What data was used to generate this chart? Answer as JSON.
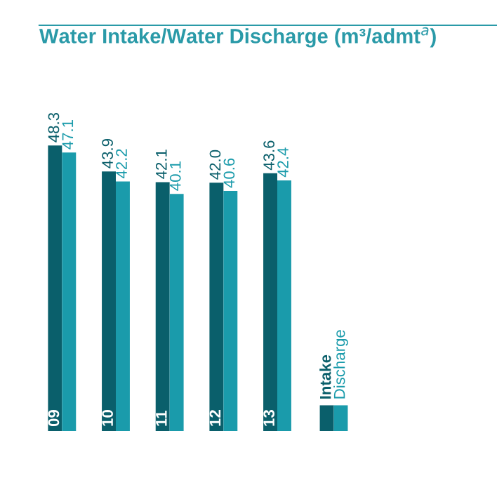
{
  "chart_data": {
    "type": "bar",
    "title": "Water Intake/Water Discharge (m³/admt$^{a}$)",
    "categories": [
      "09",
      "10",
      "11",
      "12",
      "13"
    ],
    "series": [
      {
        "name": "Intake",
        "color": "#0a5f6b",
        "values": [
          48.3,
          43.9,
          42.1,
          42.0,
          43.6
        ],
        "value_labels": [
          "48.3",
          "43.9",
          "42.1",
          "42.0",
          "43.6"
        ]
      },
      {
        "name": "Discharge",
        "color": "#1a9bab",
        "values": [
          47.1,
          42.2,
          40.1,
          40.6,
          42.4
        ],
        "value_labels": [
          "47.1",
          "42.2",
          "40.1",
          "40.6",
          "42.4"
        ]
      }
    ],
    "legend": "bottom right"
  }
}
